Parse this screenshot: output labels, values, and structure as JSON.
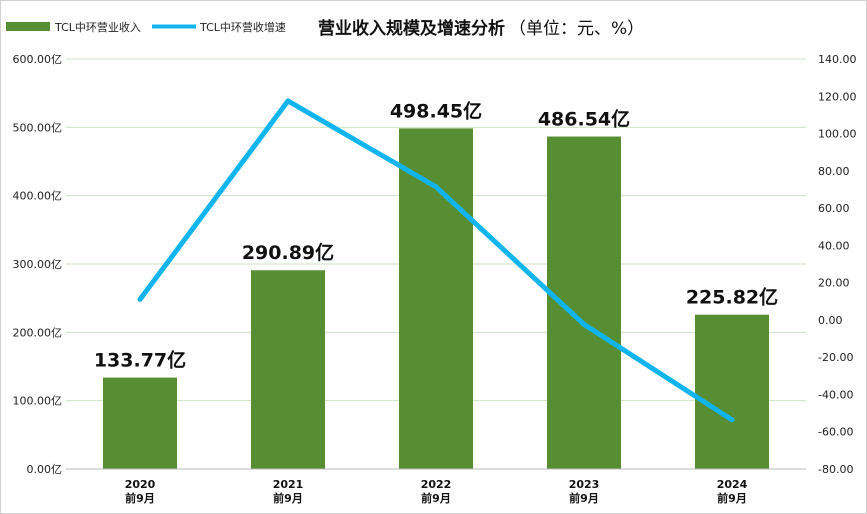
{
  "chart_data": {
    "type": "bar",
    "title": "营业收入规模及增速分析",
    "subtitle": "（单位：元、%）",
    "categories": [
      [
        "2020",
        "前9月"
      ],
      [
        "2021",
        "前9月"
      ],
      [
        "2022",
        "前9月"
      ],
      [
        "2023",
        "前9月"
      ],
      [
        "2024",
        "前9月"
      ]
    ],
    "series": [
      {
        "name": "TCL中环营业收入",
        "type": "bar",
        "axis": "left",
        "color": "#588E33",
        "values": [
          133.77,
          290.89,
          498.45,
          486.54,
          225.82
        ],
        "data_labels": [
          "133.77亿",
          "290.89亿",
          "498.45亿",
          "486.54亿",
          "225.82亿"
        ]
      },
      {
        "name": "TCL中环营收增速",
        "type": "line",
        "axis": "right",
        "color": "#10B4EE",
        "values": [
          11.0,
          117.5,
          71.4,
          -2.4,
          -53.6
        ]
      }
    ],
    "y_left": {
      "min": 0,
      "max": 600,
      "step": 100,
      "tick_labels": [
        "0.00亿",
        "100.00亿",
        "200.00亿",
        "300.00亿",
        "400.00亿",
        "500.00亿",
        "600.00亿"
      ]
    },
    "y_right": {
      "min": -80,
      "max": 140,
      "step": 20,
      "tick_labels": [
        "-80.00",
        "-60.00",
        "-40.00",
        "-20.00",
        "0.00",
        "20.00",
        "40.00",
        "60.00",
        "80.00",
        "100.00",
        "120.00",
        "140.00"
      ]
    },
    "grid": true,
    "legend_position": "top-left"
  }
}
